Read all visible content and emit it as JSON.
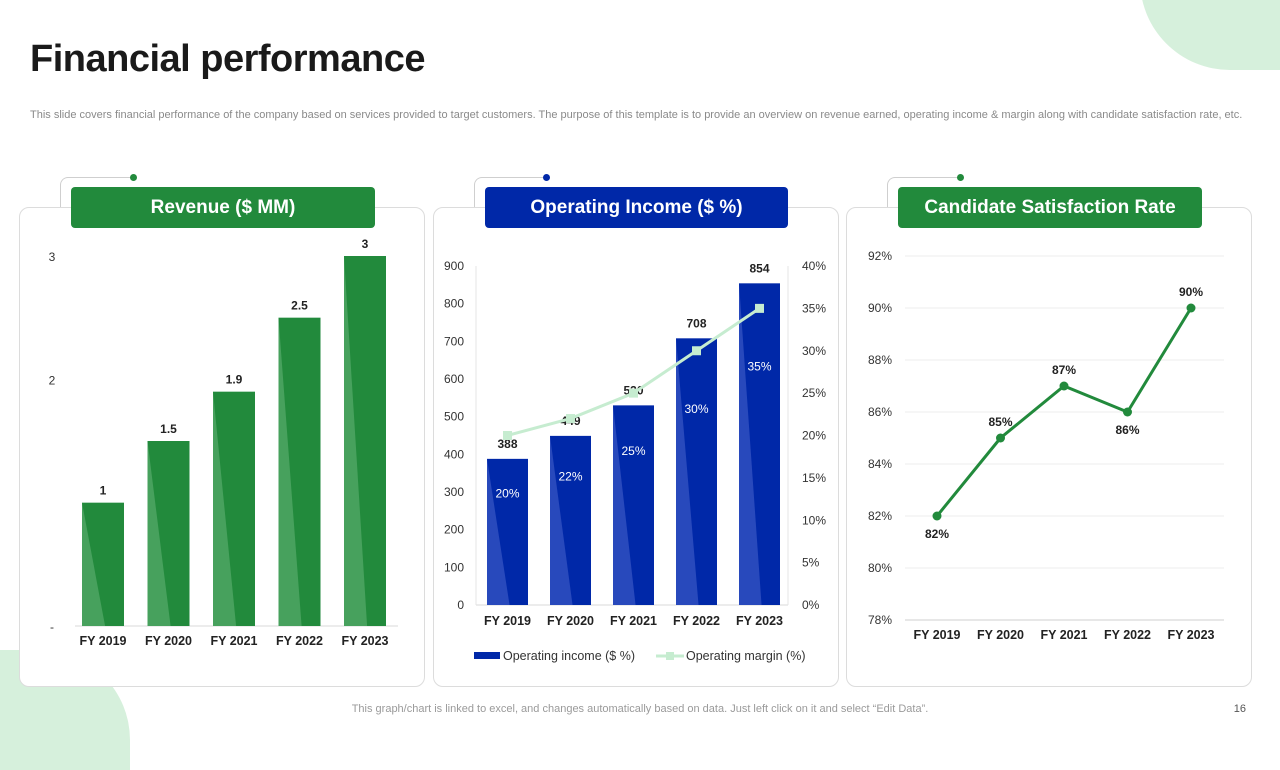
{
  "page": {
    "title": "Financial performance",
    "subtitle": "This slide covers financial performance of the company based on services provided to target customers. The purpose of this template is to provide an overview on revenue earned, operating income & margin along with candidate satisfaction rate, etc.",
    "footer": "This graph/chart is linked to excel,  and changes automatically based on data. Just left click on it and select “Edit Data”.",
    "page_number": "16"
  },
  "colors": {
    "green": "#228a3c",
    "green_light": "#4da463",
    "blue": "#0028a8",
    "blue_light": "#2f4fc0",
    "margin_line": "#c6ecd0"
  },
  "chart_data": [
    {
      "type": "bar",
      "title": "Revenue ($ MM)",
      "categories": [
        "FY  2019",
        "FY  2020",
        "FY  2021",
        "FY  2022",
        "FY  2023"
      ],
      "values": [
        1,
        1.5,
        1.9,
        2.5,
        3
      ],
      "data_labels": [
        "1",
        "1.5",
        "1.9",
        "2.5",
        "3"
      ],
      "y_ticks": [
        {
          "value": 3,
          "label": "3"
        },
        {
          "value": 2,
          "label": "2"
        },
        {
          "value": 0,
          "label": "-"
        }
      ],
      "ylim": [
        0,
        3
      ]
    },
    {
      "type": "bar",
      "title": "Operating Income ($ %)",
      "categories": [
        "FY 2019",
        "FY 2020",
        "FY 2021",
        "FY 2022",
        "FY 2023"
      ],
      "series": [
        {
          "name": "Operating income ($ %)",
          "type": "bar",
          "axis": "left",
          "values": [
            388,
            449,
            530,
            708,
            854
          ]
        },
        {
          "name": "Operating margin (%)",
          "type": "line",
          "axis": "right",
          "values": [
            20,
            22,
            25,
            30,
            35
          ]
        }
      ],
      "bar_labels": [
        "388",
        "449",
        "530",
        "708",
        "854"
      ],
      "line_labels": [
        "20%",
        "22%",
        "25%",
        "30%",
        "35%"
      ],
      "y_left_ticks": [
        "0",
        "100",
        "200",
        "300",
        "400",
        "500",
        "600",
        "700",
        "800",
        "900"
      ],
      "y_right_ticks": [
        "0%",
        "5%",
        "10%",
        "15%",
        "20%",
        "25%",
        "30%",
        "35%",
        "40%"
      ],
      "ylim_left": [
        0,
        900
      ],
      "ylim_right": [
        0,
        40
      ],
      "legend": "bottom"
    },
    {
      "type": "line",
      "title": "Candidate Satisfaction Rate",
      "categories": [
        "FY 2019",
        "FY 2020",
        "FY 2021",
        "FY 2022",
        "FY 2023"
      ],
      "values": [
        82,
        85,
        87,
        86,
        90
      ],
      "data_labels": [
        "82%",
        "85%",
        "87%",
        "86%",
        "90%"
      ],
      "y_ticks": [
        "78%",
        "80%",
        "82%",
        "84%",
        "86%",
        "88%",
        "90%",
        "92%"
      ],
      "ylim": [
        78,
        92
      ],
      "grid": true
    }
  ]
}
